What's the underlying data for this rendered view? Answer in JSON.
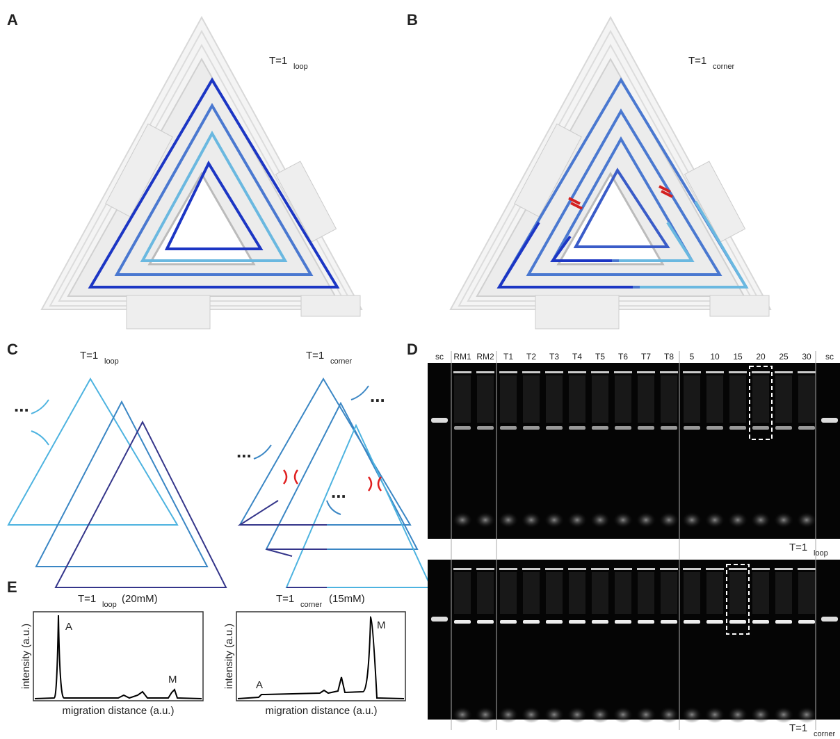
{
  "panel_a": {
    "label": "A",
    "tag": {
      "main": "T=1",
      "sub": "loop"
    }
  },
  "panel_b": {
    "label": "B",
    "tag": {
      "main": "T=1",
      "sub": "corner"
    }
  },
  "panel_c": {
    "label": "C",
    "left": {
      "main": "T=1",
      "sub": "loop"
    },
    "right": {
      "main": "T=1",
      "sub": "corner"
    },
    "ellipsis": "..."
  },
  "panel_d": {
    "label": "D",
    "lanes": [
      "sc",
      "RM1",
      "RM2",
      "T1",
      "T2",
      "T3",
      "T4",
      "T5",
      "T6",
      "T7",
      "T8",
      "5",
      "10",
      "15",
      "20",
      "25",
      "30",
      "sc"
    ],
    "gels": [
      {
        "main": "T=1",
        "sub": "loop"
      },
      {
        "main": "T=1",
        "sub": "corner"
      }
    ]
  },
  "panel_e": {
    "label": "E",
    "plots": [
      {
        "title_main": "T=1",
        "title_sub": "loop",
        "title_suffix": "(20mM)",
        "y_label": "intensity (a.u.)",
        "x_label": "migration distance (a.u.)",
        "peaks": [
          "A",
          "M"
        ]
      },
      {
        "title_main": "T=1",
        "title_sub": "corner",
        "title_suffix": "(15mM)",
        "y_label": "intensity (a.u.)",
        "x_label": "migration distance (a.u.)",
        "peaks": [
          "A",
          "M"
        ]
      }
    ]
  }
}
